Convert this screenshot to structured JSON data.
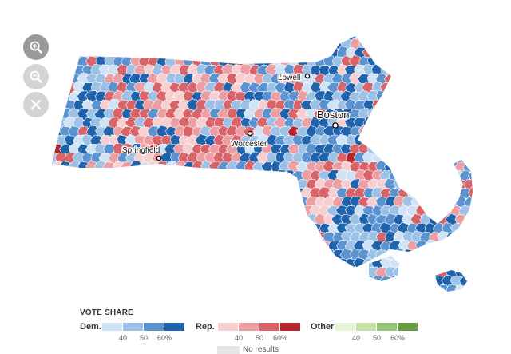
{
  "controls": {
    "zoom_in_icon": "zoom-in-icon",
    "zoom_out_icon": "zoom-out-icon",
    "reset_icon": "close-icon"
  },
  "map": {
    "region": "Massachusetts",
    "cities": [
      {
        "name": "Lowell",
        "size": "small"
      },
      {
        "name": "Boston",
        "size": "large"
      },
      {
        "name": "Springfield",
        "size": "small"
      },
      {
        "name": "Worcester",
        "size": "small"
      }
    ]
  },
  "legend": {
    "title": "VOTE SHARE",
    "dem": {
      "label": "Dem.",
      "colors": [
        "#cfe3f5",
        "#9cc1e6",
        "#5b93d1",
        "#1f63ad"
      ],
      "ticks": [
        "40",
        "50",
        "60%"
      ]
    },
    "rep": {
      "label": "Rep.",
      "colors": [
        "#f7cfd1",
        "#ec9ea2",
        "#d8646a",
        "#b5252e"
      ],
      "ticks": [
        "40",
        "50",
        "60%"
      ]
    },
    "other": {
      "label": "Other",
      "colors": [
        "#e4f4d4",
        "#c2e0a6",
        "#97c47a",
        "#6a9c45"
      ],
      "ticks": [
        "40",
        "50",
        "60%"
      ]
    },
    "no_results": "No results"
  }
}
